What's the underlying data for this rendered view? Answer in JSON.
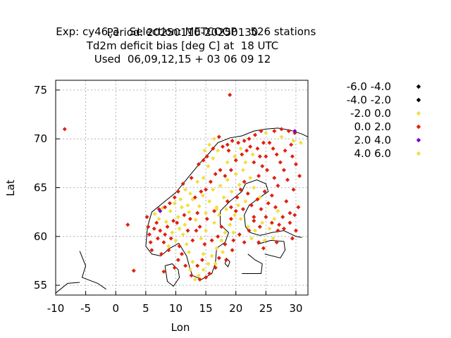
{
  "title": {
    "exp_prefix": "Exp: cy46",
    "exp_subscript": "v",
    "exp_suffix": "3   Selection: METCOOP    526 stations",
    "line2": "Period: 20250110-20250130",
    "line3": "Td2m deficit bias [deg C] at  18 UTC",
    "line4": "Used  06,09,12,15 + 03 06 09 12"
  },
  "colors": {
    "black": "#000000",
    "yellow": "#f0e040",
    "red": "#e02010",
    "purple": "#7a00c8",
    "grid": "#a0a0a0"
  },
  "chart_data": {
    "type": "scatter",
    "xlabel": "Lon",
    "ylabel": "Lat",
    "xlim": [
      -10,
      32
    ],
    "ylim": [
      54,
      76
    ],
    "xticks": [
      "-10",
      "-5",
      "0",
      "5",
      "10",
      "15",
      "20",
      "25",
      "30"
    ],
    "yticks": [
      "55",
      "60",
      "65",
      "70",
      "75"
    ],
    "grid": true,
    "legend_position": "right",
    "legend": [
      {
        "label": "-6.0 -4.0",
        "color": "#000000"
      },
      {
        "label": "-4.0 -2.0",
        "color": "#000000"
      },
      {
        "label": "-2.0 0.0",
        "color": "#f0e040"
      },
      {
        "label": "0.0 2.0",
        "color": "#e02010"
      },
      {
        "label": "2.0 4.0",
        "color": "#7a00c8"
      },
      {
        "label": "4.0 6.0",
        "color": "#f0e040"
      }
    ],
    "series": [
      {
        "bin": "-2.0 0.0",
        "color": "#f0e040",
        "points": [
          [
            6.5,
            62.3
          ],
          [
            7.2,
            61.8
          ],
          [
            7.8,
            62.9
          ],
          [
            8.4,
            61.5
          ],
          [
            9.1,
            62.6
          ],
          [
            9.8,
            63.4
          ],
          [
            10.4,
            62.0
          ],
          [
            11.0,
            63.0
          ],
          [
            11.5,
            61.2
          ],
          [
            12.2,
            62.5
          ],
          [
            12.8,
            63.8
          ],
          [
            13.3,
            61.7
          ],
          [
            13.9,
            63.1
          ],
          [
            14.5,
            64.2
          ],
          [
            15.0,
            62.4
          ],
          [
            15.6,
            63.6
          ],
          [
            16.2,
            64.8
          ],
          [
            16.8,
            63.0
          ],
          [
            17.4,
            65.2
          ],
          [
            18.0,
            64.0
          ],
          [
            18.6,
            65.8
          ],
          [
            19.3,
            64.6
          ],
          [
            20.0,
            66.4
          ],
          [
            20.6,
            65.3
          ],
          [
            21.2,
            66.8
          ],
          [
            20.4,
            63.2
          ],
          [
            19.8,
            62.2
          ],
          [
            19.0,
            61.2
          ],
          [
            18.2,
            60.4
          ],
          [
            17.6,
            59.6
          ],
          [
            16.8,
            58.8
          ],
          [
            16.0,
            58.0
          ],
          [
            15.4,
            57.2
          ],
          [
            14.6,
            56.6
          ],
          [
            13.8,
            56.0
          ],
          [
            12.8,
            57.4
          ],
          [
            12.2,
            58.4
          ],
          [
            11.8,
            59.2
          ],
          [
            11.2,
            60.2
          ],
          [
            10.6,
            60.8
          ],
          [
            10.0,
            59.6
          ],
          [
            9.4,
            60.4
          ],
          [
            8.8,
            59.0
          ],
          [
            14.2,
            59.8
          ],
          [
            15.0,
            60.6
          ],
          [
            16.4,
            61.4
          ],
          [
            17.2,
            62.2
          ],
          [
            18.4,
            62.8
          ],
          [
            22.0,
            61.0
          ],
          [
            23.2,
            60.6
          ],
          [
            24.4,
            61.4
          ],
          [
            25.6,
            60.8
          ],
          [
            26.4,
            61.8
          ],
          [
            27.0,
            62.6
          ],
          [
            24.0,
            64.0
          ],
          [
            23.0,
            65.0
          ],
          [
            22.4,
            66.0
          ],
          [
            21.6,
            67.6
          ],
          [
            22.8,
            68.4
          ],
          [
            20.8,
            69.0
          ],
          [
            19.8,
            68.2
          ],
          [
            18.6,
            67.6
          ],
          [
            17.0,
            68.8
          ],
          [
            16.2,
            68.0
          ],
          [
            15.4,
            67.2
          ],
          [
            14.6,
            66.0
          ],
          [
            13.6,
            65.6
          ],
          [
            12.4,
            64.4
          ],
          [
            11.6,
            64.8
          ],
          [
            10.8,
            63.8
          ],
          [
            16.4,
            70.0
          ],
          [
            15.6,
            69.4
          ],
          [
            14.8,
            68.8
          ],
          [
            27.6,
            70.2
          ],
          [
            29.6,
            69.8
          ],
          [
            26.2,
            59.8
          ],
          [
            24.8,
            59.6
          ],
          [
            22.6,
            59.8
          ],
          [
            25.0,
            70.6
          ],
          [
            30.8,
            69.6
          ],
          [
            12.4,
            56.6
          ],
          [
            13.2,
            55.6
          ],
          [
            14.6,
            58.2
          ],
          [
            16.6,
            57.2
          ],
          [
            17.8,
            58.4
          ],
          [
            19.6,
            60.4
          ],
          [
            20.8,
            61.8
          ],
          [
            21.6,
            63.6
          ]
        ]
      },
      {
        "bin": "0.0 2.0",
        "color": "#e02010",
        "points": [
          [
            -8.5,
            71.0
          ],
          [
            19.0,
            74.5
          ],
          [
            2.0,
            61.2
          ],
          [
            3.0,
            56.5
          ],
          [
            5.2,
            62.0
          ],
          [
            5.4,
            61.0
          ],
          [
            5.6,
            60.2
          ],
          [
            5.8,
            59.4
          ],
          [
            6.0,
            58.6
          ],
          [
            6.4,
            60.8
          ],
          [
            6.8,
            61.4
          ],
          [
            7.0,
            59.8
          ],
          [
            7.4,
            60.6
          ],
          [
            7.6,
            58.2
          ],
          [
            8.0,
            59.4
          ],
          [
            8.2,
            60.2
          ],
          [
            8.6,
            61.0
          ],
          [
            8.8,
            58.6
          ],
          [
            9.2,
            59.8
          ],
          [
            9.6,
            61.6
          ],
          [
            10.2,
            61.4
          ],
          [
            10.6,
            59.0
          ],
          [
            11.0,
            58.2
          ],
          [
            11.4,
            62.2
          ],
          [
            12.0,
            60.6
          ],
          [
            12.4,
            61.8
          ],
          [
            12.8,
            59.6
          ],
          [
            13.4,
            60.6
          ],
          [
            13.6,
            62.4
          ],
          [
            14.0,
            61.0
          ],
          [
            14.4,
            57.6
          ],
          [
            14.8,
            59.2
          ],
          [
            15.2,
            61.8
          ],
          [
            15.6,
            56.2
          ],
          [
            16.0,
            59.6
          ],
          [
            16.4,
            62.6
          ],
          [
            16.6,
            56.8
          ],
          [
            17.0,
            60.0
          ],
          [
            17.6,
            61.0
          ],
          [
            18.2,
            59.2
          ],
          [
            18.6,
            63.6
          ],
          [
            19.2,
            63.0
          ],
          [
            19.6,
            59.6
          ],
          [
            20.2,
            64.0
          ],
          [
            20.8,
            64.8
          ],
          [
            21.4,
            65.6
          ],
          [
            22.0,
            64.4
          ],
          [
            22.6,
            63.2
          ],
          [
            23.0,
            62.0
          ],
          [
            23.6,
            63.8
          ],
          [
            24.2,
            62.8
          ],
          [
            24.8,
            64.6
          ],
          [
            25.4,
            63.4
          ],
          [
            26.0,
            64.2
          ],
          [
            26.6,
            63.0
          ],
          [
            27.2,
            61.2
          ],
          [
            27.8,
            62.0
          ],
          [
            28.4,
            63.6
          ],
          [
            29.0,
            62.4
          ],
          [
            29.6,
            64.8
          ],
          [
            28.6,
            65.8
          ],
          [
            28.0,
            66.8
          ],
          [
            27.4,
            67.6
          ],
          [
            26.8,
            68.4
          ],
          [
            26.2,
            69.0
          ],
          [
            25.6,
            69.6
          ],
          [
            25.0,
            68.2
          ],
          [
            24.4,
            67.2
          ],
          [
            23.8,
            66.2
          ],
          [
            25.2,
            66.8
          ],
          [
            26.4,
            66.0
          ],
          [
            27.0,
            65.2
          ],
          [
            28.2,
            68.8
          ],
          [
            29.2,
            69.4
          ],
          [
            29.8,
            70.6
          ],
          [
            28.8,
            70.8
          ],
          [
            27.6,
            71.0
          ],
          [
            26.4,
            70.8
          ],
          [
            24.2,
            70.8
          ],
          [
            23.2,
            70.4
          ],
          [
            22.2,
            70.0
          ],
          [
            21.4,
            69.8
          ],
          [
            20.4,
            69.6
          ],
          [
            19.4,
            69.8
          ],
          [
            18.6,
            69.4
          ],
          [
            17.8,
            69.2
          ],
          [
            17.2,
            70.2
          ],
          [
            22.4,
            69.2
          ],
          [
            23.6,
            69.0
          ],
          [
            24.6,
            69.6
          ],
          [
            21.0,
            68.4
          ],
          [
            19.2,
            66.8
          ],
          [
            18.2,
            66.2
          ],
          [
            17.4,
            66.8
          ],
          [
            16.6,
            66.4
          ],
          [
            15.8,
            65.6
          ],
          [
            15.0,
            64.8
          ],
          [
            14.2,
            64.6
          ],
          [
            13.2,
            64.0
          ],
          [
            12.6,
            66.0
          ],
          [
            13.8,
            67.4
          ],
          [
            14.6,
            67.8
          ],
          [
            15.2,
            68.2
          ],
          [
            16.2,
            69.0
          ],
          [
            10.4,
            64.6
          ],
          [
            11.2,
            65.4
          ],
          [
            9.8,
            64.0
          ],
          [
            9.0,
            63.4
          ],
          [
            8.2,
            63.0
          ],
          [
            7.2,
            62.8
          ],
          [
            8.0,
            56.4
          ],
          [
            9.8,
            56.8
          ],
          [
            10.4,
            57.6
          ],
          [
            11.6,
            57.0
          ],
          [
            12.6,
            56.0
          ],
          [
            13.6,
            57.0
          ],
          [
            14.0,
            55.6
          ],
          [
            15.0,
            55.8
          ],
          [
            17.2,
            57.8
          ],
          [
            18.4,
            57.6
          ],
          [
            19.4,
            58.6
          ],
          [
            20.6,
            60.2
          ],
          [
            21.4,
            59.4
          ],
          [
            22.2,
            60.6
          ],
          [
            23.0,
            61.6
          ],
          [
            24.0,
            61.0
          ],
          [
            25.0,
            62.0
          ],
          [
            26.0,
            61.4
          ],
          [
            27.0,
            60.6
          ],
          [
            28.0,
            60.8
          ],
          [
            29.0,
            61.4
          ],
          [
            29.8,
            62.2
          ],
          [
            30.4,
            63.0
          ],
          [
            30.0,
            60.6
          ],
          [
            29.4,
            59.8
          ],
          [
            23.8,
            59.4
          ],
          [
            24.6,
            58.8
          ],
          [
            26.8,
            59.4
          ],
          [
            21.2,
            62.8
          ],
          [
            20.0,
            62.6
          ],
          [
            19.2,
            61.8
          ],
          [
            21.8,
            68.8
          ],
          [
            20.0,
            67.8
          ],
          [
            18.8,
            68.8
          ],
          [
            23.0,
            67.6
          ],
          [
            24.0,
            68.2
          ],
          [
            30.6,
            66.2
          ],
          [
            30.0,
            67.4
          ],
          [
            29.4,
            68.2
          ]
        ]
      },
      {
        "bin": "2.0 4.0",
        "color": "#7a00c8",
        "points": [
          [
            7.4,
            62.6
          ],
          [
            29.8,
            70.8
          ]
        ]
      },
      {
        "bin": "4.0 6.0",
        "color": "#f0e040",
        "points": [
          [
            12.0,
            63.2
          ],
          [
            16.8,
            62.8
          ]
        ]
      }
    ]
  }
}
